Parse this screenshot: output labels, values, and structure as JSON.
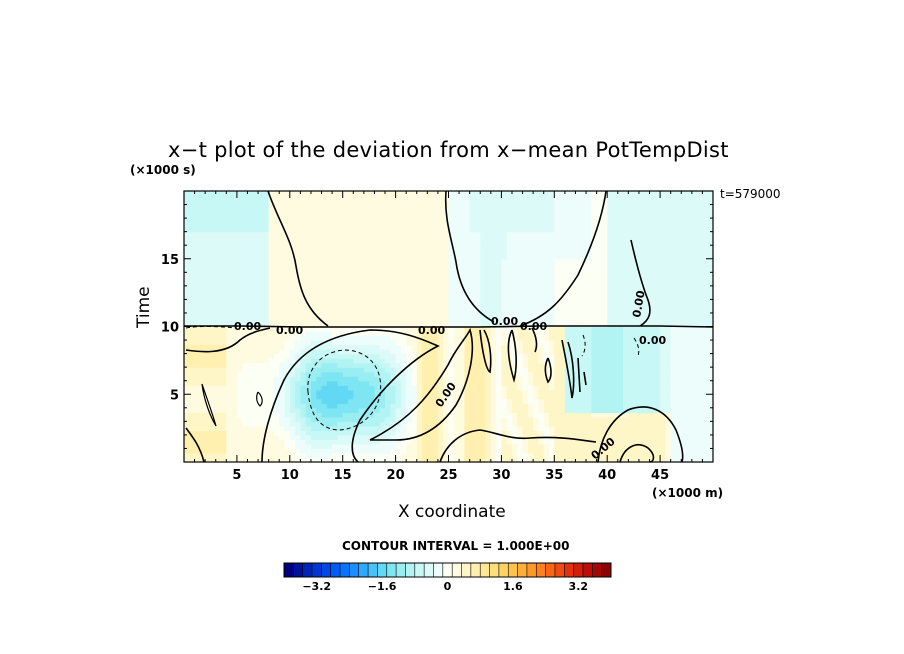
{
  "chart_data": {
    "type": "heatmap",
    "title": "x−t plot of the deviation from x−mean PotTempDist",
    "xlabel": "X coordinate",
    "ylabel": "Time",
    "x_scale_note": "(×1000 m)",
    "y_scale_note": "(×1000 s)",
    "time_stamp": "t=579000",
    "contour_interval": "CONTOUR INTERVAL = 1.000E+00",
    "xlim": [
      0,
      50
    ],
    "ylim": [
      0,
      20
    ],
    "x_ticks": [
      5,
      10,
      15,
      20,
      25,
      30,
      35,
      40,
      45
    ],
    "y_ticks": [
      5,
      10,
      15
    ],
    "x_tick_labels": [
      "5",
      "10",
      "15",
      "20",
      "25",
      "30",
      "35",
      "40",
      "45"
    ],
    "y_tick_labels": [
      "5",
      "10",
      "15"
    ],
    "contour_labels": [
      "0.00",
      "0.00",
      "0.00",
      "0.00",
      "0.00",
      "0.00",
      "0.00",
      "0.00",
      "0.00"
    ],
    "colorbar": {
      "min": -4.0,
      "max": 4.0,
      "step": 0.4,
      "tick_values": [
        -3.2,
        -1.6,
        0,
        1.6,
        3.2
      ],
      "tick_labels": [
        "−3.2",
        "−1.6",
        "0",
        "1.6",
        "3.2"
      ],
      "colors": [
        "#00007f",
        "#00129c",
        "#0024b8",
        "#0036d2",
        "#0048e6",
        "#005cf4",
        "#0874fb",
        "#1a8efd",
        "#30a8fc",
        "#48c2f8",
        "#62d8f4",
        "#7ee6f2",
        "#9aeef2",
        "#b2f4f4",
        "#c8f8f6",
        "#dcfbf8",
        "#ecfdfb",
        "#fbfff4",
        "#fffbe0",
        "#fff6c8",
        "#fff0b0",
        "#ffe896",
        "#ffde7c",
        "#ffd264",
        "#ffc24e",
        "#ffaf3a",
        "#ff992a",
        "#ff801e",
        "#f96616",
        "#ee4c10",
        "#e0330c",
        "#cf1e0a",
        "#bb0e08",
        "#a30706",
        "#8a0404"
      ]
    },
    "field_description_values": {
      "upper_band_time_range": [
        10,
        20
      ],
      "lower_band_time_range": [
        0,
        10
      ],
      "warm_strip_x_range_upper": [
        8,
        25
      ],
      "cold_core_center": [
        15,
        5
      ],
      "cold_core_min": -2.0
    }
  }
}
